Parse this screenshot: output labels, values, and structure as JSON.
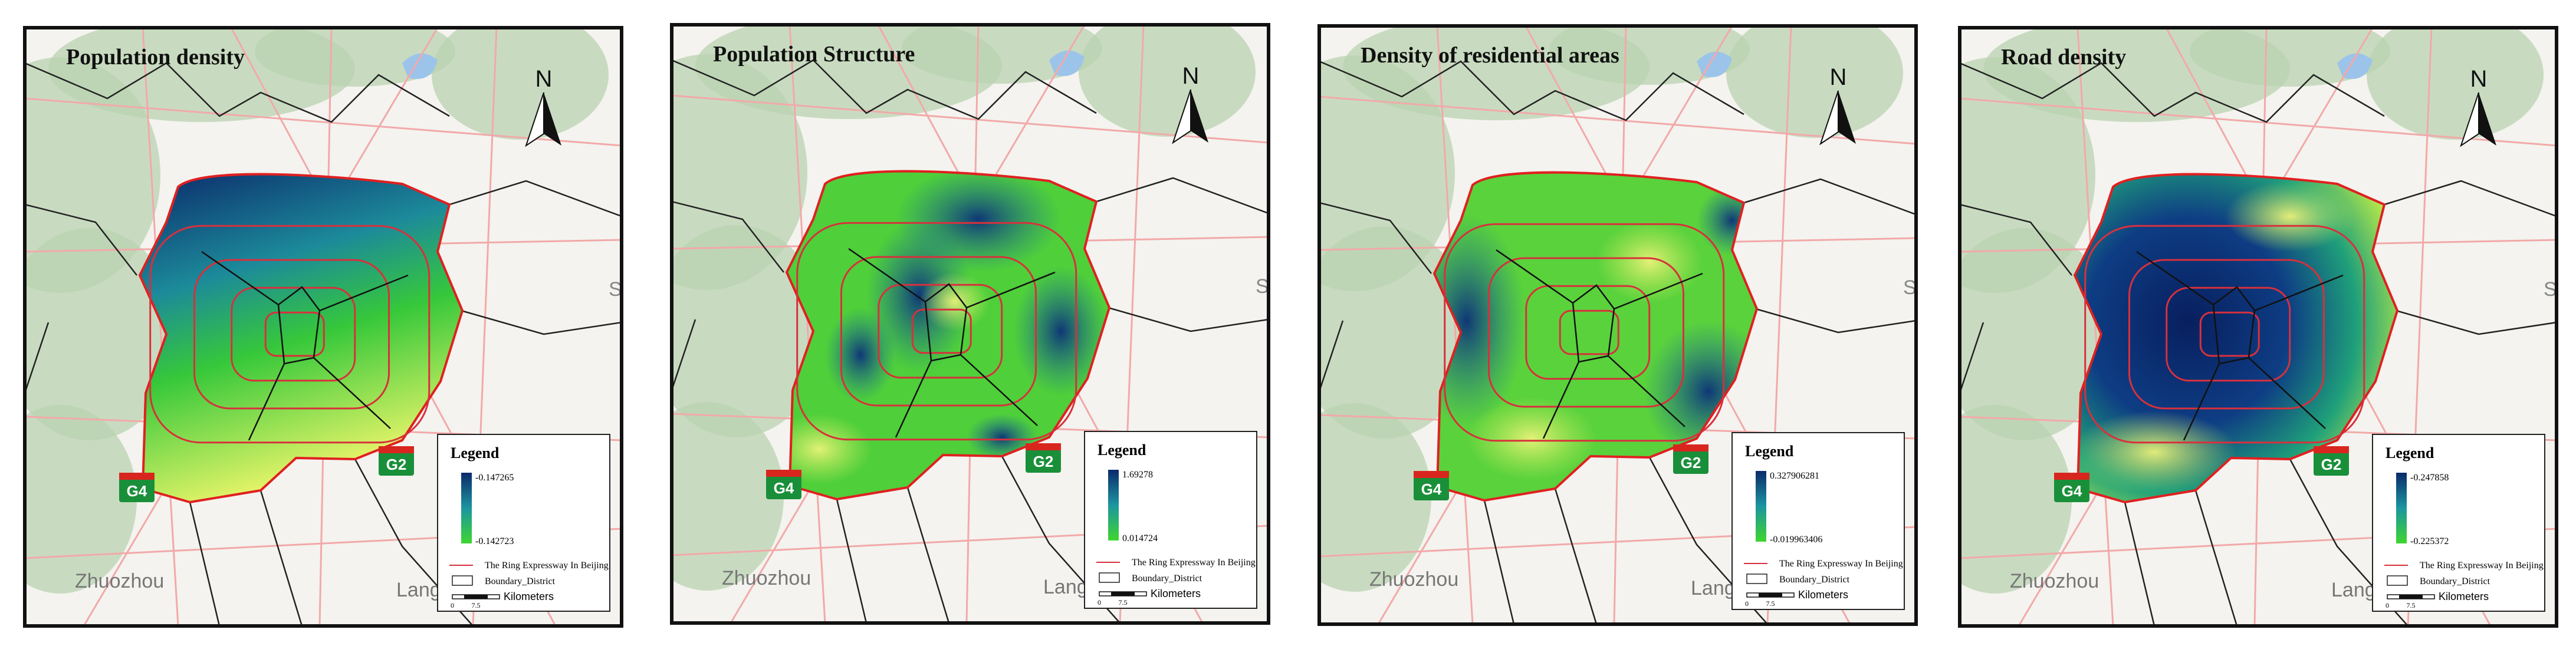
{
  "panels": [
    {
      "title": "Population density",
      "legend_max": "-0.147265",
      "legend_min": "-0.142723"
    },
    {
      "title": "Population Structure",
      "legend_max": "1.69278",
      "legend_min": "0.014724"
    },
    {
      "title": "Density of residential areas",
      "legend_max": "0.327906281",
      "legend_min": "-0.019963406"
    },
    {
      "title": "Road density",
      "legend_max": "-0.247858",
      "legend_min": "-0.225372"
    }
  ],
  "common": {
    "north": "N",
    "legend_title": "Legend",
    "ring_label": "The Ring Expressway In Beijing",
    "boundary_label": "Boundary_District",
    "scale_zero": "0",
    "scale_mid": "7.5",
    "scale_unit": "Kilometers",
    "place_1": "Zhuozhou",
    "place_2": "Lang",
    "place_3": "S",
    "road_1": "G4",
    "road_2": "G2"
  }
}
